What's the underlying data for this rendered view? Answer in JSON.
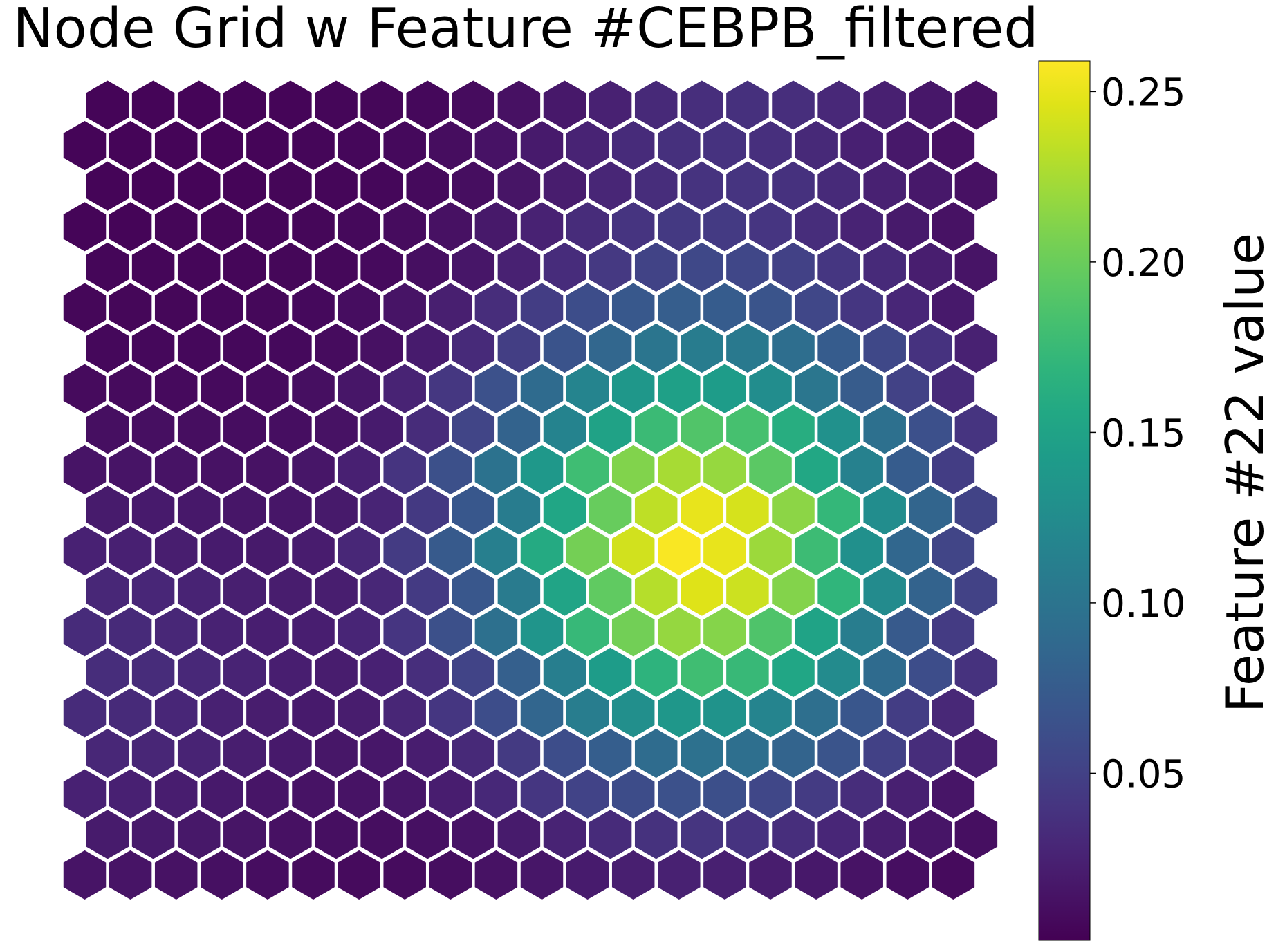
{
  "chart_data": {
    "type": "heatmap",
    "subtype": "hexagonal-node-grid",
    "title": "Node Grid w Feature #CEBPB_filtered",
    "rows": 20,
    "cols": 20,
    "colormap": "viridis",
    "colorbar": {
      "label": "Feature #22 value",
      "range": [
        0.001,
        0.259
      ],
      "ticks": [
        0.05,
        0.1,
        0.15,
        0.2,
        0.25
      ],
      "tick_labels": [
        "0.05",
        "0.10",
        "0.15",
        "0.20",
        "0.25"
      ]
    },
    "field_model": {
      "description": "values estimated from cell colors; peak near row 11 col 13 (0-indexed, top row first)",
      "peak": {
        "row": 10.9,
        "col": 13.2,
        "value": 0.258
      },
      "sigma_rows": 3.6,
      "sigma_cols": 3.2,
      "base": 0.004,
      "secondary": {
        "row": 14,
        "col": 0,
        "value": 0.05,
        "sigma": 3.5
      },
      "top_band": {
        "row": 0,
        "col": 14,
        "value": 0.05,
        "sigma": 3
      }
    },
    "grid_on": false,
    "axes_visible": false
  }
}
